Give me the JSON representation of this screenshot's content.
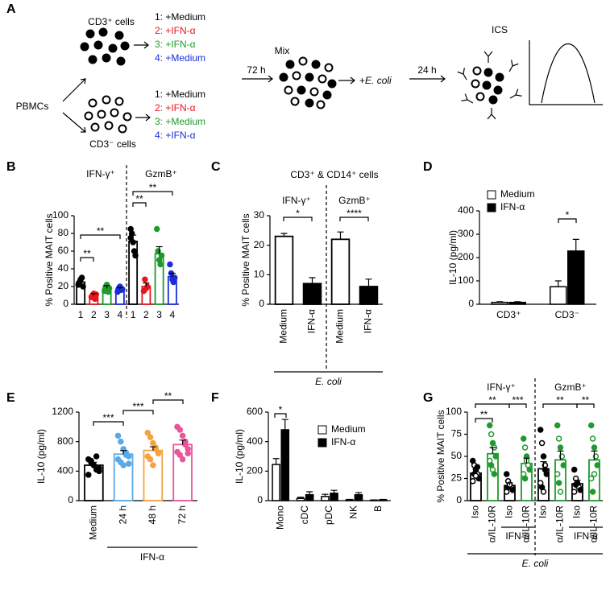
{
  "schematic": {
    "panel": "A",
    "cd3pos_label": "CD3⁺ cells",
    "cd3neg_label": "CD3⁻ cells",
    "source": "PBMCs",
    "cd3pos_conditions": [
      {
        "text": "1: +Medium",
        "color": "#000000"
      },
      {
        "text": "2: +IFN-α",
        "color": "#e8141b"
      },
      {
        "text": "3: +IFN-α",
        "color": "#1f9a2c"
      },
      {
        "text": "4: +Medium",
        "color": "#1b2fd6"
      }
    ],
    "cd3neg_conditions": [
      {
        "text": "1: +Medium",
        "color": "#000000"
      },
      {
        "text": "2: +IFN-α",
        "color": "#e8141b"
      },
      {
        "text": "3: +Medium",
        "color": "#1f9a2c"
      },
      {
        "text": "4: +IFN-α",
        "color": "#1b2fd6"
      }
    ],
    "mix": "Mix",
    "mix_time": "72 h",
    "stimulus_prefix": "+",
    "stimulus": "E. coli",
    "stim_time": "24 h",
    "readout": "ICS"
  },
  "chart_data": [
    {
      "type": "bar",
      "panel": "B",
      "ylabel": "% Positive MAIT cells",
      "groups": [
        "IFN-γ⁺",
        "GzmB⁺"
      ],
      "categories": [
        "1",
        "2",
        "3",
        "4",
        "1",
        "2",
        "3",
        "4"
      ],
      "values": [
        25,
        10,
        18,
        17,
        71,
        20,
        57,
        31
      ],
      "errors": [
        3,
        2,
        3,
        2,
        7,
        4,
        8,
        4
      ],
      "colors": [
        "#000000",
        "#e8141b",
        "#1f9a2c",
        "#1b2fd6",
        "#000000",
        "#e8141b",
        "#1f9a2c",
        "#1b2fd6"
      ],
      "filled": false,
      "point_style": "filled",
      "points": [
        [
          22,
          25,
          28,
          30,
          20
        ],
        [
          8,
          10,
          12,
          6,
          11
        ],
        [
          15,
          20,
          22,
          14,
          18
        ],
        [
          14,
          18,
          20,
          16,
          17
        ],
        [
          85,
          80,
          70,
          60,
          55,
          75
        ],
        [
          15,
          28,
          18,
          20
        ],
        [
          85,
          60,
          50,
          45,
          55
        ],
        [
          45,
          35,
          28,
          25,
          30
        ]
      ],
      "ylim": [
        0,
        100
      ],
      "yticks": [
        0,
        20,
        40,
        60,
        80,
        100
      ],
      "significance": [
        "**",
        "**",
        "**",
        "**"
      ]
    },
    {
      "type": "bar",
      "panel": "C",
      "title": "CD3⁺ & CD14⁺ cells",
      "ylabel": "% Positive MAIT cells",
      "groups": [
        "IFN-γ⁺",
        "GzmB⁺"
      ],
      "categories": [
        "Medium",
        "IFN-α",
        "Medium",
        "IFN-α"
      ],
      "values": [
        23,
        7,
        22,
        6
      ],
      "errors": [
        1,
        2,
        2.5,
        2.5
      ],
      "colors": [
        "#ffffff",
        "#000000",
        "#ffffff",
        "#000000"
      ],
      "filled": true,
      "xlabel": "E. coli",
      "ylim": [
        0,
        30
      ],
      "yticks": [
        0,
        10,
        20,
        30
      ],
      "significance": [
        "*",
        "****"
      ]
    },
    {
      "type": "grouped_bar",
      "panel": "D",
      "ylabel": "IL-10 (pg/ml)",
      "categories": [
        "CD3⁺",
        "CD3⁻"
      ],
      "series": [
        {
          "name": "Medium",
          "color": "#ffffff",
          "values": [
            8,
            75
          ],
          "errors": [
            3,
            25
          ]
        },
        {
          "name": "IFN-α",
          "color": "#000000",
          "values": [
            8,
            228
          ],
          "errors": [
            3,
            50
          ]
        }
      ],
      "ylim": [
        0,
        400
      ],
      "yticks": [
        0,
        100,
        200,
        300,
        400
      ],
      "significance": [
        "*"
      ]
    },
    {
      "type": "bar",
      "panel": "E",
      "ylabel": "IL-10 (pg/ml)",
      "categories": [
        "Medium",
        "24 h",
        "48 h",
        "72 h"
      ],
      "values": [
        480,
        630,
        680,
        760
      ],
      "errors": [
        40,
        50,
        50,
        60
      ],
      "colors": [
        "#000000",
        "#5aa9e6",
        "#f4a340",
        "#e8559a"
      ],
      "filled": false,
      "point_style": "filled",
      "points": [
        [
          560,
          540,
          480,
          420,
          400,
          350,
          520,
          480,
          600,
          440
        ],
        [
          880,
          800,
          700,
          650,
          600,
          560,
          520,
          480,
          620,
          500
        ],
        [
          920,
          860,
          780,
          720,
          650,
          600,
          560,
          480,
          700,
          640
        ],
        [
          1000,
          960,
          880,
          800,
          700,
          660,
          620,
          560,
          760,
          640
        ]
      ],
      "group_label": "IFN-α",
      "ylim": [
        0,
        1200
      ],
      "yticks": [
        0,
        400,
        800,
        1200
      ],
      "significance": [
        "***",
        "***",
        "**"
      ]
    },
    {
      "type": "grouped_bar",
      "panel": "F",
      "ylabel": "IL-10 (pg/ml)",
      "categories": [
        "Mono",
        "cDC",
        "pDC",
        "NK",
        "B"
      ],
      "series": [
        {
          "name": "Medium",
          "color": "#ffffff",
          "values": [
            245,
            15,
            28,
            5,
            3
          ],
          "errors": [
            40,
            8,
            15,
            3,
            2
          ]
        },
        {
          "name": "IFN-α",
          "color": "#000000",
          "values": [
            480,
            40,
            50,
            40,
            5
          ],
          "errors": [
            70,
            20,
            20,
            15,
            3
          ]
        }
      ],
      "ylim": [
        0,
        600
      ],
      "yticks": [
        0,
        200,
        400,
        600
      ],
      "significance": [
        "*"
      ]
    },
    {
      "type": "bar",
      "panel": "G",
      "ylabel": "% Positive MAIT cells",
      "groups": [
        "IFN-γ⁺",
        "GzmB⁺"
      ],
      "categories": [
        "Iso",
        "α/IL-10R",
        "Iso",
        "α/IL-10R",
        "Iso",
        "α/IL-10R",
        "Iso",
        "α/IL-10R"
      ],
      "values": [
        31,
        53,
        17,
        42,
        36,
        46,
        19,
        46
      ],
      "errors": [
        5,
        7,
        3,
        6,
        8,
        10,
        4,
        10
      ],
      "colors": [
        "#000000",
        "#1f9a2c",
        "#000000",
        "#1f9a2c",
        "#000000",
        "#1f9a2c",
        "#000000",
        "#1f9a2c"
      ],
      "filled": false,
      "point_style": "mixed",
      "points": [
        [
          45,
          40,
          35,
          30,
          25,
          22,
          30,
          28,
          38
        ],
        [
          85,
          75,
          65,
          60,
          50,
          45,
          40,
          35,
          30
        ],
        [
          30,
          22,
          18,
          15,
          12,
          10,
          15,
          18
        ],
        [
          70,
          60,
          50,
          40,
          35,
          30,
          25,
          45
        ],
        [
          80,
          65,
          50,
          40,
          30,
          20,
          15,
          10,
          35
        ],
        [
          85,
          70,
          60,
          50,
          40,
          30,
          20,
          10
        ],
        [
          35,
          25,
          20,
          15,
          12,
          10,
          18
        ],
        [
          85,
          70,
          60,
          50,
          40,
          25,
          10,
          30
        ]
      ],
      "treatment_labels": [
        "IFN-α",
        "IFN-α"
      ],
      "xlabel": "E. coli",
      "ylim": [
        0,
        100
      ],
      "yticks": [
        0,
        25,
        50,
        75,
        100
      ],
      "significance": [
        "**",
        "**",
        "***",
        "**",
        "**"
      ]
    }
  ]
}
